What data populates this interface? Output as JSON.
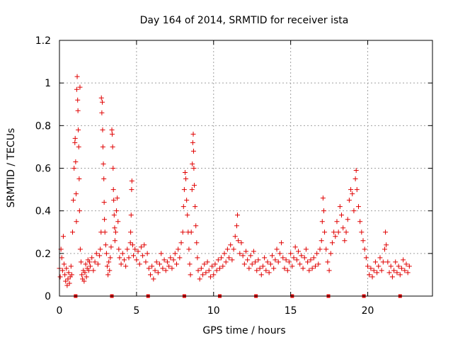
{
  "chart_data": {
    "type": "scatter",
    "title": "Day 164 of 2014, SRMTID for receiver ista",
    "xlabel": "GPS time / hours",
    "ylabel": "SRMTID / TECUs",
    "xlim": [
      0,
      24.2
    ],
    "ylim": [
      0,
      1.2
    ],
    "x_ticks": [
      0,
      5,
      10,
      15,
      20
    ],
    "y_ticks": [
      0,
      0.2,
      0.4,
      0.6,
      0.8,
      1.0,
      1.2
    ],
    "x_tick_labels": [
      "0",
      "5",
      "10",
      "15",
      "20"
    ],
    "y_tick_labels": [
      "0",
      "0.2",
      "0.4",
      "0.6",
      "0.8",
      "1",
      "1.2"
    ],
    "grid": true,
    "marker": "+",
    "color": "#e00000",
    "baseline_markers_x": [
      1.05,
      3.4,
      5.75,
      8.1,
      10.4,
      12.75,
      15.1,
      17.45,
      19.75,
      22.1
    ],
    "points": [
      [
        0.0,
        0.13
      ],
      [
        0.05,
        0.09
      ],
      [
        0.1,
        0.22
      ],
      [
        0.15,
        0.18
      ],
      [
        0.2,
        0.12
      ],
      [
        0.25,
        0.28
      ],
      [
        0.3,
        0.15
      ],
      [
        0.35,
        0.1
      ],
      [
        0.4,
        0.07
      ],
      [
        0.45,
        0.13
      ],
      [
        0.5,
        0.05
      ],
      [
        0.55,
        0.08
      ],
      [
        0.6,
        0.11
      ],
      [
        0.65,
        0.06
      ],
      [
        0.7,
        0.09
      ],
      [
        0.75,
        0.14
      ],
      [
        0.8,
        0.1
      ],
      [
        0.85,
        0.3
      ],
      [
        0.9,
        0.45
      ],
      [
        0.95,
        0.6
      ],
      [
        1.0,
        0.72
      ],
      [
        1.02,
        0.74
      ],
      [
        1.05,
        0.63
      ],
      [
        1.08,
        0.48
      ],
      [
        1.1,
        0.35
      ],
      [
        1.12,
        0.97
      ],
      [
        1.15,
        1.03
      ],
      [
        1.18,
        0.92
      ],
      [
        1.2,
        0.87
      ],
      [
        1.22,
        0.78
      ],
      [
        1.25,
        0.7
      ],
      [
        1.28,
        0.55
      ],
      [
        1.3,
        0.4
      ],
      [
        1.33,
        0.98
      ],
      [
        1.35,
        0.22
      ],
      [
        1.4,
        0.16
      ],
      [
        1.45,
        0.1
      ],
      [
        1.5,
        0.08
      ],
      [
        1.55,
        0.12
      ],
      [
        1.6,
        0.07
      ],
      [
        1.65,
        0.11
      ],
      [
        1.7,
        0.15
      ],
      [
        1.75,
        0.09
      ],
      [
        1.8,
        0.13
      ],
      [
        1.85,
        0.17
      ],
      [
        1.9,
        0.12
      ],
      [
        1.95,
        0.16
      ],
      [
        2.0,
        0.14
      ],
      [
        2.1,
        0.18
      ],
      [
        2.2,
        0.12
      ],
      [
        2.3,
        0.16
      ],
      [
        2.4,
        0.2
      ],
      [
        2.5,
        0.15
      ],
      [
        2.6,
        0.19
      ],
      [
        2.65,
        0.22
      ],
      [
        2.7,
        0.3
      ],
      [
        2.72,
        0.93
      ],
      [
        2.75,
        0.86
      ],
      [
        2.78,
        0.91
      ],
      [
        2.8,
        0.78
      ],
      [
        2.82,
        0.7
      ],
      [
        2.85,
        0.62
      ],
      [
        2.88,
        0.55
      ],
      [
        2.9,
        0.44
      ],
      [
        2.92,
        0.36
      ],
      [
        2.95,
        0.3
      ],
      [
        3.0,
        0.24
      ],
      [
        3.05,
        0.2
      ],
      [
        3.1,
        0.14
      ],
      [
        3.15,
        0.1
      ],
      [
        3.2,
        0.16
      ],
      [
        3.25,
        0.12
      ],
      [
        3.3,
        0.18
      ],
      [
        3.35,
        0.23
      ],
      [
        3.4,
        0.78
      ],
      [
        3.42,
        0.76
      ],
      [
        3.45,
        0.7
      ],
      [
        3.48,
        0.6
      ],
      [
        3.5,
        0.5
      ],
      [
        3.52,
        0.45
      ],
      [
        3.55,
        0.38
      ],
      [
        3.58,
        0.32
      ],
      [
        3.6,
        0.26
      ],
      [
        3.65,
        0.3
      ],
      [
        3.7,
        0.4
      ],
      [
        3.75,
        0.46
      ],
      [
        3.8,
        0.35
      ],
      [
        3.85,
        0.22
      ],
      [
        3.9,
        0.18
      ],
      [
        4.0,
        0.15
      ],
      [
        4.1,
        0.2
      ],
      [
        4.2,
        0.17
      ],
      [
        4.3,
        0.14
      ],
      [
        4.4,
        0.22
      ],
      [
        4.5,
        0.18
      ],
      [
        4.6,
        0.25
      ],
      [
        4.62,
        0.3
      ],
      [
        4.65,
        0.38
      ],
      [
        4.68,
        0.5
      ],
      [
        4.7,
        0.54
      ],
      [
        4.75,
        0.24
      ],
      [
        4.8,
        0.19
      ],
      [
        4.9,
        0.22
      ],
      [
        5.0,
        0.17
      ],
      [
        5.1,
        0.21
      ],
      [
        5.2,
        0.15
      ],
      [
        5.3,
        0.23
      ],
      [
        5.4,
        0.19
      ],
      [
        5.5,
        0.24
      ],
      [
        5.6,
        0.16
      ],
      [
        5.7,
        0.2
      ],
      [
        5.8,
        0.13
      ],
      [
        5.9,
        0.1
      ],
      [
        6.0,
        0.14
      ],
      [
        6.1,
        0.08
      ],
      [
        6.2,
        0.12
      ],
      [
        6.3,
        0.16
      ],
      [
        6.4,
        0.11
      ],
      [
        6.5,
        0.15
      ],
      [
        6.6,
        0.2
      ],
      [
        6.7,
        0.13
      ],
      [
        6.8,
        0.17
      ],
      [
        6.9,
        0.12
      ],
      [
        7.0,
        0.16
      ],
      [
        7.1,
        0.14
      ],
      [
        7.2,
        0.18
      ],
      [
        7.3,
        0.13
      ],
      [
        7.4,
        0.17
      ],
      [
        7.5,
        0.2
      ],
      [
        7.6,
        0.15
      ],
      [
        7.7,
        0.22
      ],
      [
        7.8,
        0.18
      ],
      [
        7.9,
        0.25
      ],
      [
        8.0,
        0.3
      ],
      [
        8.05,
        0.42
      ],
      [
        8.1,
        0.5
      ],
      [
        8.15,
        0.58
      ],
      [
        8.2,
        0.55
      ],
      [
        8.25,
        0.45
      ],
      [
        8.3,
        0.38
      ],
      [
        8.35,
        0.3
      ],
      [
        8.4,
        0.22
      ],
      [
        8.45,
        0.15
      ],
      [
        8.5,
        0.1
      ],
      [
        8.55,
        0.3
      ],
      [
        8.6,
        0.5
      ],
      [
        8.62,
        0.62
      ],
      [
        8.65,
        0.72
      ],
      [
        8.68,
        0.76
      ],
      [
        8.7,
        0.68
      ],
      [
        8.72,
        0.6
      ],
      [
        8.75,
        0.52
      ],
      [
        8.8,
        0.42
      ],
      [
        8.85,
        0.33
      ],
      [
        8.9,
        0.25
      ],
      [
        8.95,
        0.18
      ],
      [
        9.0,
        0.12
      ],
      [
        9.1,
        0.08
      ],
      [
        9.2,
        0.13
      ],
      [
        9.3,
        0.1
      ],
      [
        9.4,
        0.15
      ],
      [
        9.5,
        0.11
      ],
      [
        9.6,
        0.16
      ],
      [
        9.7,
        0.12
      ],
      [
        9.8,
        0.09
      ],
      [
        9.9,
        0.14
      ],
      [
        10.0,
        0.1
      ],
      [
        10.1,
        0.15
      ],
      [
        10.2,
        0.12
      ],
      [
        10.3,
        0.17
      ],
      [
        10.4,
        0.13
      ],
      [
        10.5,
        0.18
      ],
      [
        10.6,
        0.14
      ],
      [
        10.7,
        0.2
      ],
      [
        10.8,
        0.16
      ],
      [
        10.9,
        0.22
      ],
      [
        11.0,
        0.18
      ],
      [
        11.1,
        0.24
      ],
      [
        11.2,
        0.17
      ],
      [
        11.3,
        0.22
      ],
      [
        11.4,
        0.28
      ],
      [
        11.5,
        0.33
      ],
      [
        11.55,
        0.38
      ],
      [
        11.6,
        0.26
      ],
      [
        11.7,
        0.2
      ],
      [
        11.8,
        0.25
      ],
      [
        11.9,
        0.19
      ],
      [
        12.0,
        0.15
      ],
      [
        12.1,
        0.21
      ],
      [
        12.2,
        0.17
      ],
      [
        12.3,
        0.13
      ],
      [
        12.4,
        0.19
      ],
      [
        12.5,
        0.15
      ],
      [
        12.6,
        0.21
      ],
      [
        12.7,
        0.16
      ],
      [
        12.8,
        0.12
      ],
      [
        12.9,
        0.17
      ],
      [
        13.0,
        0.13
      ],
      [
        13.1,
        0.1
      ],
      [
        13.2,
        0.14
      ],
      [
        13.3,
        0.18
      ],
      [
        13.4,
        0.12
      ],
      [
        13.5,
        0.16
      ],
      [
        13.6,
        0.11
      ],
      [
        13.7,
        0.15
      ],
      [
        13.8,
        0.19
      ],
      [
        13.9,
        0.13
      ],
      [
        14.0,
        0.17
      ],
      [
        14.1,
        0.22
      ],
      [
        14.2,
        0.16
      ],
      [
        14.3,
        0.2
      ],
      [
        14.4,
        0.25
      ],
      [
        14.5,
        0.18
      ],
      [
        14.6,
        0.13
      ],
      [
        14.7,
        0.17
      ],
      [
        14.8,
        0.12
      ],
      [
        14.9,
        0.16
      ],
      [
        15.0,
        0.2
      ],
      [
        15.1,
        0.14
      ],
      [
        15.2,
        0.18
      ],
      [
        15.3,
        0.23
      ],
      [
        15.4,
        0.17
      ],
      [
        15.5,
        0.21
      ],
      [
        15.6,
        0.15
      ],
      [
        15.7,
        0.19
      ],
      [
        15.8,
        0.13
      ],
      [
        15.9,
        0.18
      ],
      [
        16.0,
        0.22
      ],
      [
        16.1,
        0.16
      ],
      [
        16.2,
        0.12
      ],
      [
        16.3,
        0.17
      ],
      [
        16.4,
        0.13
      ],
      [
        16.5,
        0.18
      ],
      [
        16.6,
        0.14
      ],
      [
        16.7,
        0.2
      ],
      [
        16.8,
        0.15
      ],
      [
        16.9,
        0.22
      ],
      [
        17.0,
        0.26
      ],
      [
        17.05,
        0.35
      ],
      [
        17.1,
        0.46
      ],
      [
        17.15,
        0.4
      ],
      [
        17.2,
        0.3
      ],
      [
        17.3,
        0.22
      ],
      [
        17.4,
        0.16
      ],
      [
        17.5,
        0.12
      ],
      [
        17.6,
        0.2
      ],
      [
        17.7,
        0.25
      ],
      [
        17.8,
        0.3
      ],
      [
        17.9,
        0.28
      ],
      [
        18.0,
        0.35
      ],
      [
        18.1,
        0.3
      ],
      [
        18.2,
        0.42
      ],
      [
        18.3,
        0.38
      ],
      [
        18.4,
        0.32
      ],
      [
        18.5,
        0.26
      ],
      [
        18.6,
        0.3
      ],
      [
        18.7,
        0.36
      ],
      [
        18.8,
        0.45
      ],
      [
        18.9,
        0.5
      ],
      [
        19.0,
        0.48
      ],
      [
        19.1,
        0.4
      ],
      [
        19.2,
        0.55
      ],
      [
        19.25,
        0.59
      ],
      [
        19.3,
        0.5
      ],
      [
        19.4,
        0.42
      ],
      [
        19.5,
        0.35
      ],
      [
        19.6,
        0.3
      ],
      [
        19.7,
        0.26
      ],
      [
        19.8,
        0.22
      ],
      [
        19.9,
        0.18
      ],
      [
        20.0,
        0.14
      ],
      [
        20.1,
        0.1
      ],
      [
        20.2,
        0.13
      ],
      [
        20.3,
        0.09
      ],
      [
        20.4,
        0.12
      ],
      [
        20.5,
        0.16
      ],
      [
        20.6,
        0.11
      ],
      [
        20.7,
        0.14
      ],
      [
        20.8,
        0.18
      ],
      [
        20.9,
        0.12
      ],
      [
        21.0,
        0.16
      ],
      [
        21.1,
        0.22
      ],
      [
        21.15,
        0.3
      ],
      [
        21.2,
        0.24
      ],
      [
        21.3,
        0.16
      ],
      [
        21.4,
        0.11
      ],
      [
        21.5,
        0.14
      ],
      [
        21.6,
        0.09
      ],
      [
        21.7,
        0.12
      ],
      [
        21.8,
        0.16
      ],
      [
        21.9,
        0.11
      ],
      [
        22.0,
        0.14
      ],
      [
        22.1,
        0.1
      ],
      [
        22.2,
        0.13
      ],
      [
        22.3,
        0.17
      ],
      [
        22.4,
        0.12
      ],
      [
        22.5,
        0.15
      ],
      [
        22.6,
        0.11
      ],
      [
        22.7,
        0.14
      ]
    ]
  }
}
